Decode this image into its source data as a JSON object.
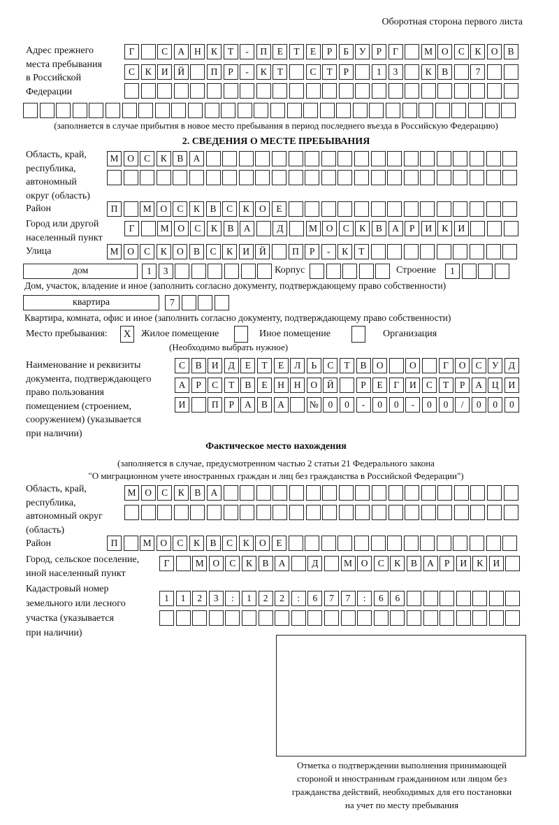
{
  "header": "Оборотная сторона первого листа",
  "prev_address": {
    "label": "Адрес прежнего\nместа пребывания\nв Российской\nФедерации",
    "rows": [
      [
        "Г",
        "",
        "С",
        "А",
        "Н",
        "К",
        "Т",
        "-",
        "П",
        "Е",
        "Т",
        "Е",
        "Р",
        "Б",
        "У",
        "Р",
        "Г",
        "",
        "М",
        "О",
        "С",
        "К",
        "О",
        "В"
      ],
      [
        "С",
        "К",
        "И",
        "Й",
        "",
        "П",
        "Р",
        "-",
        "К",
        "Т",
        "",
        "С",
        "Т",
        "Р",
        "",
        "1",
        "3",
        "",
        "К",
        "В",
        "",
        "7",
        "",
        ""
      ],
      [
        "",
        "",
        "",
        "",
        "",
        "",
        "",
        "",
        "",
        "",
        "",
        "",
        "",
        "",
        "",
        "",
        "",
        "",
        "",
        "",
        "",
        "",
        "",
        ""
      ],
      [
        "",
        "",
        "",
        "",
        "",
        "",
        "",
        "",
        "",
        "",
        "",
        "",
        "",
        "",
        "",
        "",
        "",
        "",
        "",
        "",
        "",
        "",
        "",
        "",
        "",
        "",
        "",
        "",
        "",
        ""
      ]
    ],
    "note": "(заполняется в случае прибытия в новое место пребывания в период последнего въезда в Российскую Федерацию)"
  },
  "section2": {
    "title": "2. СВЕДЕНИЯ О МЕСТЕ ПРЕБЫВАНИЯ",
    "region_label": "Область, край,\nреспублика,\nавтономный\nокруг (область)",
    "region_rows": [
      [
        "М",
        "О",
        "С",
        "К",
        "В",
        "А",
        "",
        "",
        "",
        "",
        "",
        "",
        "",
        "",
        "",
        "",
        "",
        "",
        "",
        "",
        "",
        "",
        "",
        "",
        ""
      ],
      [
        "",
        "",
        "",
        "",
        "",
        "",
        "",
        "",
        "",
        "",
        "",
        "",
        "",
        "",
        "",
        "",
        "",
        "",
        "",
        "",
        "",
        "",
        "",
        "",
        ""
      ]
    ],
    "district_label": "Район",
    "district": [
      "П",
      "",
      "М",
      "О",
      "С",
      "К",
      "В",
      "С",
      "К",
      "О",
      "Е",
      "",
      "",
      "",
      "",
      "",
      "",
      "",
      "",
      "",
      "",
      "",
      "",
      "",
      ""
    ],
    "city_label": "Город или другой\nнаселенный пункт",
    "city": [
      "Г",
      "",
      "М",
      "О",
      "С",
      "К",
      "В",
      "А",
      "",
      "Д",
      "",
      "М",
      "О",
      "С",
      "К",
      "В",
      "А",
      "Р",
      "И",
      "К",
      "И",
      "",
      "",
      ""
    ],
    "street_label": "Улица",
    "street": [
      "М",
      "О",
      "С",
      "К",
      "О",
      "В",
      "С",
      "К",
      "И",
      "Й",
      "",
      "П",
      "Р",
      "-",
      "К",
      "Т",
      "",
      "",
      "",
      "",
      "",
      "",
      "",
      "",
      ""
    ],
    "house_type": "дом",
    "house": [
      "1",
      "3",
      "",
      "",
      "",
      "",
      "",
      ""
    ],
    "korpus_label": "Корпус",
    "korpus": [
      "",
      "",
      "",
      "",
      ""
    ],
    "building_label": "Строение",
    "building": [
      "1",
      "",
      "",
      ""
    ],
    "house_note": "Дом, участок, владение и иное (заполнить согласно документу, подтверждающему право собственности)",
    "flat_type": "квартира",
    "flat": [
      "7",
      "",
      "",
      ""
    ],
    "flat_note": "Квартира, комната, офис и иное (заполнить согласно документу, подтверждающему право собственности)",
    "stay_label": "Место пребывания:",
    "stay_options": [
      {
        "mark": "X",
        "label": "Жилое помещение"
      },
      {
        "mark": "",
        "label": "Иное помещение"
      },
      {
        "mark": "",
        "label": "Организация"
      }
    ],
    "stay_note": "(Необходимо выбрать нужное)",
    "doc_label": "Наименование и реквизиты\nдокумента, подтверждающего\nправо пользования\nпомещением (строением,\nсооружением) (указывается\nпри наличии)",
    "doc_rows": [
      [
        "С",
        "В",
        "И",
        "Д",
        "Е",
        "Т",
        "Е",
        "Л",
        "Ь",
        "С",
        "Т",
        "В",
        "О",
        "",
        "О",
        "",
        "Г",
        "О",
        "С",
        "У",
        "Д"
      ],
      [
        "А",
        "Р",
        "С",
        "Т",
        "В",
        "Е",
        "Н",
        "Н",
        "О",
        "Й",
        "",
        "Р",
        "Е",
        "Г",
        "И",
        "С",
        "Т",
        "Р",
        "А",
        "Ц",
        "И"
      ],
      [
        "И",
        "",
        "П",
        "Р",
        "А",
        "В",
        "А",
        "",
        "№",
        "0",
        "0",
        "-",
        "0",
        "0",
        "-",
        "0",
        "0",
        "/",
        "0",
        "0",
        "0"
      ]
    ]
  },
  "actual": {
    "title": "Фактическое место нахождения",
    "note1": "(заполняется в случае, предусмотренном частью 2 статьи 21 Федерального закона",
    "note2": "\"О миграционном учете иностранных граждан и лиц без гражданства в Российской Федерации\")",
    "region_label": "Область, край,\nреспублика,\nавтономный округ\n(область)",
    "region_rows": [
      [
        "М",
        "О",
        "С",
        "К",
        "В",
        "А",
        "",
        "",
        "",
        "",
        "",
        "",
        "",
        "",
        "",
        "",
        "",
        "",
        "",
        "",
        "",
        "",
        "",
        ""
      ],
      [
        "",
        "",
        "",
        "",
        "",
        "",
        "",
        "",
        "",
        "",
        "",
        "",
        "",
        "",
        "",
        "",
        "",
        "",
        "",
        "",
        "",
        "",
        "",
        ""
      ]
    ],
    "district_label": "Район",
    "district": [
      "П",
      "",
      "М",
      "О",
      "С",
      "К",
      "В",
      "С",
      "К",
      "О",
      "Е",
      "",
      "",
      "",
      "",
      "",
      "",
      "",
      "",
      "",
      "",
      "",
      "",
      "",
      ""
    ],
    "city_label": "Город, сельское поселение,\nиной населенный пункт",
    "city": [
      "Г",
      "",
      "М",
      "О",
      "С",
      "К",
      "В",
      "А",
      "",
      "Д",
      "",
      "М",
      "О",
      "С",
      "К",
      "В",
      "А",
      "Р",
      "И",
      "К",
      "И",
      ""
    ],
    "cadastral_label": "Кадастровый номер\nземельного или лесного\nучастка (указывается\nпри наличии)",
    "cadastral_rows": [
      [
        "1",
        "1",
        "2",
        "3",
        ":",
        "1",
        "2",
        "2",
        ":",
        "6",
        "7",
        "7",
        ":",
        "6",
        "6",
        "",
        "",
        "",
        "",
        "",
        "",
        ""
      ],
      [
        "",
        "",
        "",
        "",
        "",
        "",
        "",
        "",
        "",
        "",
        "",
        "",
        "",
        "",
        "",
        "",
        "",
        "",
        "",
        "",
        "",
        ""
      ]
    ]
  },
  "stamp_caption": "Отметка о подтверждении выполнения принимающей\nстороной и иностранным гражданином или лицом без\nгражданства действий, необходимых для его постановки\nна учет по месту пребывания"
}
